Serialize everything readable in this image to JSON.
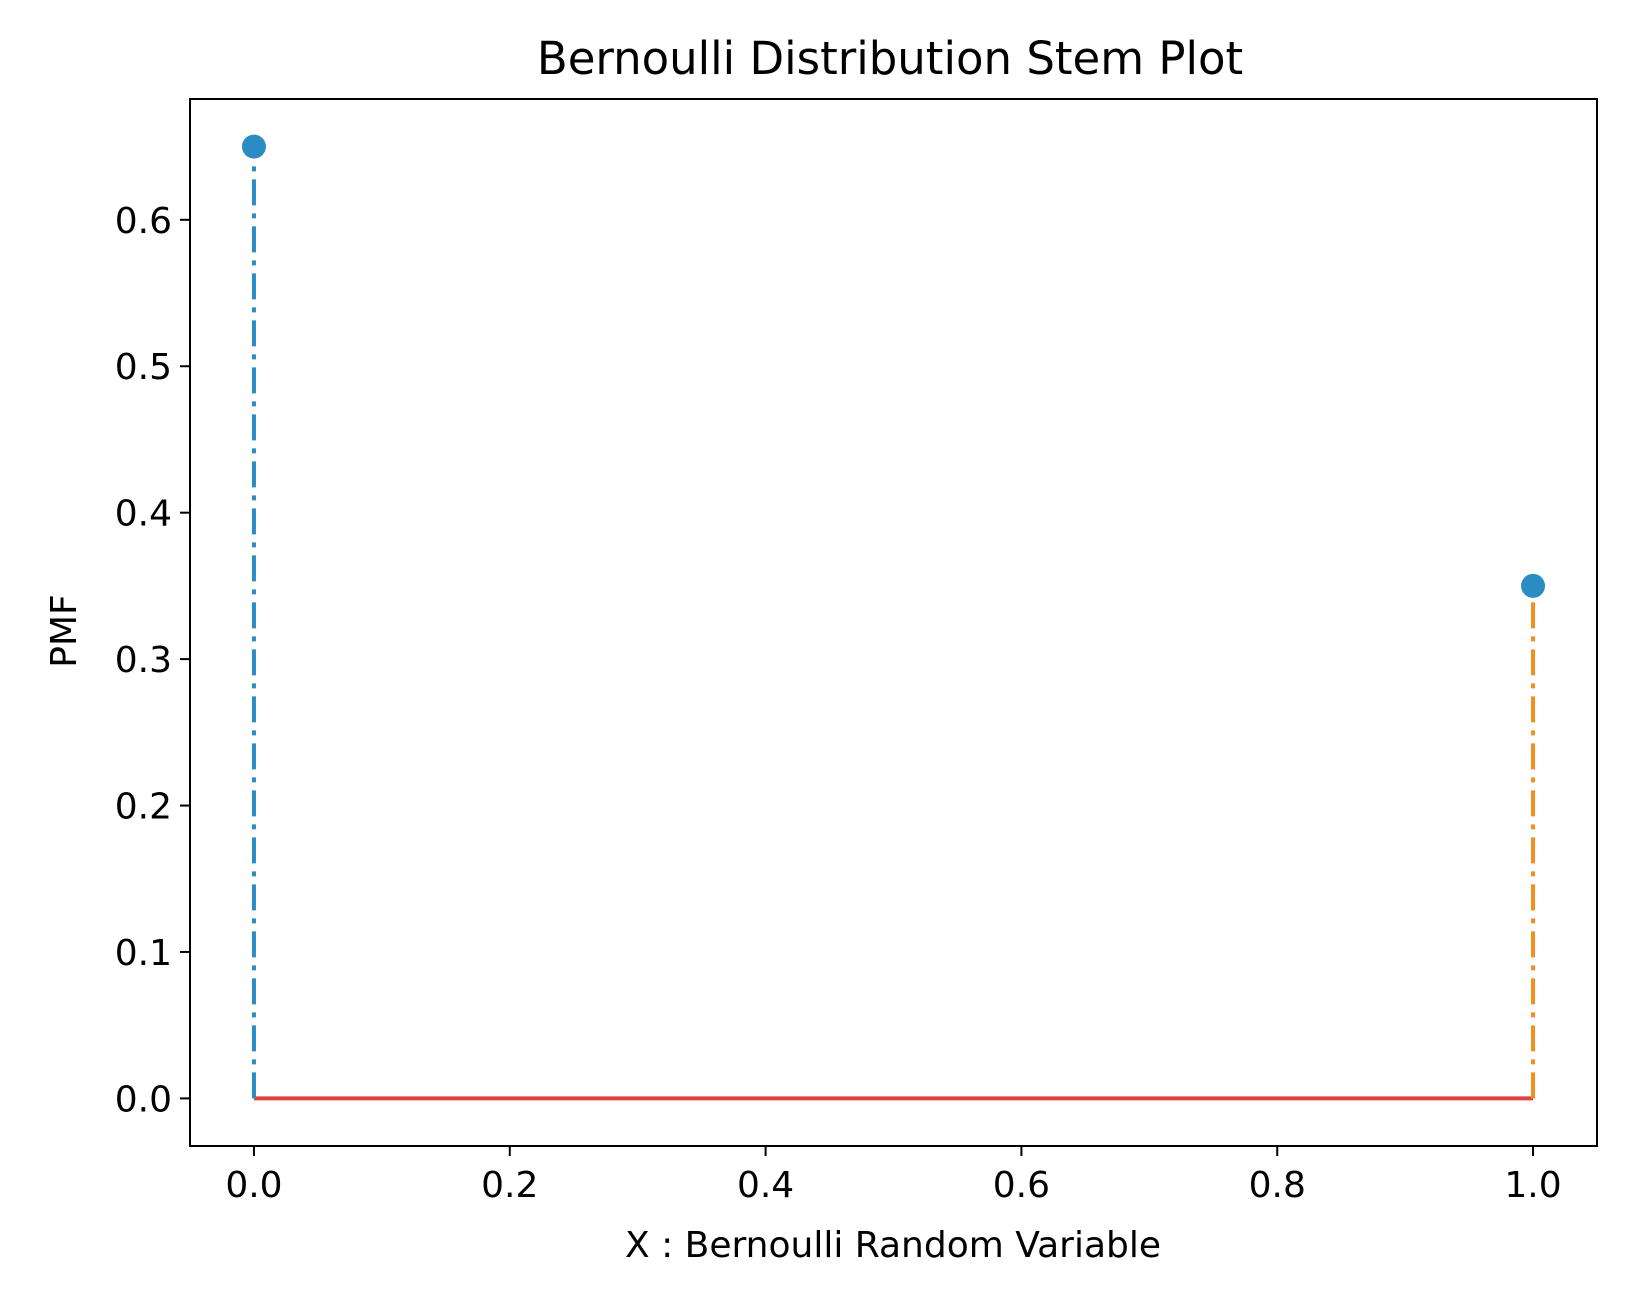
{
  "chart_data": {
    "type": "stem",
    "title": "Bernoulli Distribution Stem Plot",
    "xlabel": "X : Bernoulli Random Variable",
    "ylabel": "PMF",
    "x": [
      0,
      1
    ],
    "values": [
      0.65,
      0.35
    ],
    "xlim": [
      -0.05,
      1.05
    ],
    "ylim": [
      -0.0325,
      0.6825
    ],
    "xticks": [
      0.0,
      0.2,
      0.4,
      0.6,
      0.8,
      1.0
    ],
    "yticks": [
      0.0,
      0.1,
      0.2,
      0.3,
      0.4,
      0.5,
      0.6
    ],
    "xtick_labels": [
      "0.0",
      "0.2",
      "0.4",
      "0.6",
      "0.8",
      "1.0"
    ],
    "ytick_labels": [
      "0.0",
      "0.1",
      "0.2",
      "0.3",
      "0.4",
      "0.5",
      "0.6"
    ],
    "grid": false,
    "legend": "none",
    "colors": {
      "markers": "#2b8cc4",
      "stems": [
        "#2b8cc4",
        "#f28e1c"
      ],
      "baseline": "#e0413a",
      "axes": "#000000"
    },
    "stem_linestyle": "dashdot"
  }
}
